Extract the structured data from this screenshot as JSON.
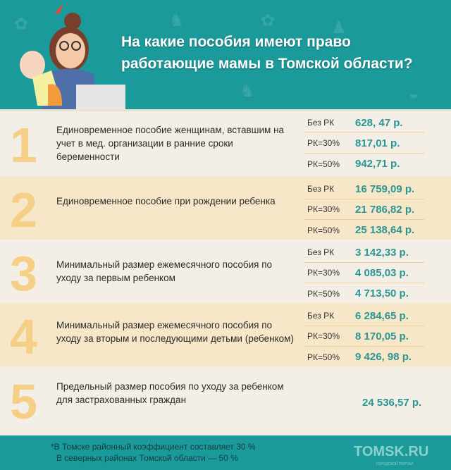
{
  "header": {
    "title_line1": "На какие пособия имеют право",
    "title_line2": "работающие мамы в Томской области?"
  },
  "colors": {
    "teal": "#1b9a9b",
    "value": "#2a9693",
    "number": "#f5cf86",
    "tan": "#f6e7c9",
    "light": "#f3efe6"
  },
  "rows": [
    {
      "number": "1",
      "description": "Единовременное пособие женщинам, вставшим на учет в мед. организации в ранние сроки беременности",
      "values": [
        {
          "label": "Без РК",
          "value": "628, 47 р."
        },
        {
          "label": "РК=30%",
          "value": "817,01 р."
        },
        {
          "label": "РК=50%",
          "value": "942,71 р."
        }
      ]
    },
    {
      "number": "2",
      "description": "Единовременное пособие при рождении ребенка",
      "values": [
        {
          "label": "Без РК",
          "value": "16 759,09 р."
        },
        {
          "label": "РК=30%",
          "value": "21 786,82 р."
        },
        {
          "label": "РК=50%",
          "value": "25 138,64 р."
        }
      ]
    },
    {
      "number": "3",
      "description": "Минимальный размер ежемесячного пособия по уходу за первым ребенком",
      "values": [
        {
          "label": "Без РК",
          "value": "3 142,33 р."
        },
        {
          "label": "РК=30%",
          "value": "4 085,03 р."
        },
        {
          "label": "РК=50%",
          "value": "4 713,50 р."
        }
      ]
    },
    {
      "number": "4",
      "description": "Минимальный размер ежемесячного пособия по уходу за вторым и последующими детьми (ребенком)",
      "values": [
        {
          "label": "Без РК",
          "value": "6 284,65 р."
        },
        {
          "label": "РК=30%",
          "value": "8 170,05 р."
        },
        {
          "label": "РК=50%",
          "value": "9 426, 98 р."
        }
      ]
    },
    {
      "number": "5",
      "description": "Предельный размер пособия по уходу за ребенком для застрахованных граждан",
      "values": [
        {
          "label": "",
          "value": "24 536,57 р."
        }
      ]
    }
  ],
  "footer": {
    "note_line1": "*В Томске районный коэффициент составляет 30 %",
    "note_line2": "В северных районах Томской области — 50 %",
    "logo": "TOMSK.RU",
    "logo_sub": "ГОРОДСКОЙ ПОРТАЛ"
  }
}
